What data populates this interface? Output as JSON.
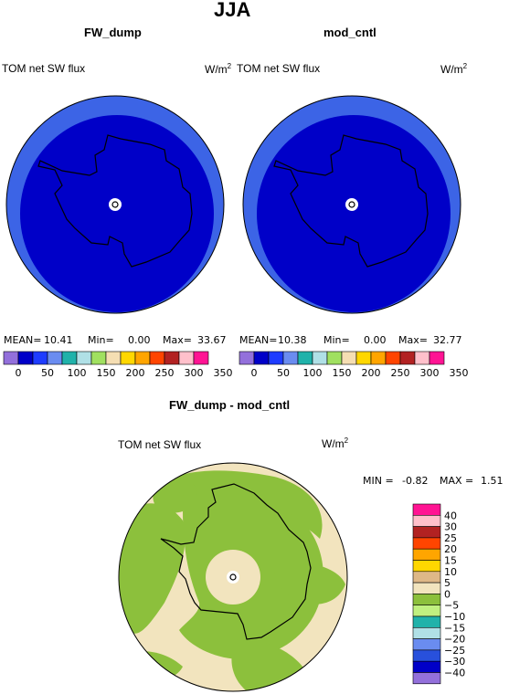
{
  "title": "JJA",
  "units": "W/m",
  "units_exp": "2",
  "colors": {
    "ocean_deep": "#0000c8",
    "ring": "#3c64e6",
    "pos": "#f2e4be",
    "neg5": "#8cc03c"
  },
  "panels": [
    {
      "title": "FW_dump",
      "variable": "TOM net SW flux",
      "stats": {
        "mean_label": "MEAN=",
        "mean": "10.41",
        "min_label": "Min=",
        "min": "0.00",
        "max_label": "Max=",
        "max": "33.67"
      }
    },
    {
      "title": "mod_cntl",
      "variable": "TOM net SW flux",
      "stats": {
        "mean_label": "MEAN=",
        "mean": "10.38",
        "min_label": "Min=",
        "min": "0.00",
        "max_label": "Max=",
        "max": "32.77"
      }
    },
    {
      "title": "FW_dump - mod_cntl",
      "variable": "TOM net SW flux",
      "stats": {
        "min_label": "MIN =",
        "min": "-0.82",
        "max_label": "MAX =",
        "max": "1.51"
      }
    }
  ],
  "chart_data": [
    {
      "type": "heatmap",
      "title": "FW_dump",
      "subtitle": "TOM net SW flux",
      "projection": "polar",
      "mean": 10.41,
      "min": 0.0,
      "max": 33.67,
      "colorbar": {
        "colors": [
          "#9370db",
          "#0000c8",
          "#1e3cff",
          "#6a8cf0",
          "#20b2aa",
          "#b0e0e6",
          "#a0e060",
          "#f5deb3",
          "#ffd700",
          "#ffa500",
          "#ff4500",
          "#b22222",
          "#ffc0cb",
          "#ff1493"
        ],
        "labels": [
          "0",
          "50",
          "100",
          "150",
          "200",
          "250",
          "300",
          "350"
        ]
      }
    },
    {
      "type": "heatmap",
      "title": "mod_cntl",
      "subtitle": "TOM net SW flux",
      "projection": "polar",
      "mean": 10.38,
      "min": 0.0,
      "max": 32.77,
      "colorbar": {
        "colors": [
          "#9370db",
          "#0000c8",
          "#1e3cff",
          "#6a8cf0",
          "#20b2aa",
          "#b0e0e6",
          "#a0e060",
          "#f5deb3",
          "#ffd700",
          "#ffa500",
          "#ff4500",
          "#b22222",
          "#ffc0cb",
          "#ff1493"
        ],
        "labels": [
          "0",
          "50",
          "100",
          "150",
          "200",
          "250",
          "300",
          "350"
        ]
      }
    },
    {
      "type": "heatmap",
      "title": "FW_dump - mod_cntl",
      "subtitle": "TOM net SW flux",
      "projection": "polar",
      "min": -0.82,
      "max": 1.51,
      "colorbar": {
        "colors": [
          "#ff1493",
          "#ffc0cb",
          "#b22222",
          "#ff4500",
          "#ffa500",
          "#ffd700",
          "#deb887",
          "#f2e4be",
          "#8cc03c",
          "#c0f080",
          "#20b2aa",
          "#b0e0e6",
          "#6a8cf0",
          "#2850dc",
          "#0000c8",
          "#9370db"
        ],
        "labels": [
          "40",
          "30",
          "25",
          "20",
          "15",
          "10",
          "5",
          "0",
          "−5",
          "−10",
          "−15",
          "−20",
          "−25",
          "−30",
          "−40"
        ]
      }
    }
  ]
}
